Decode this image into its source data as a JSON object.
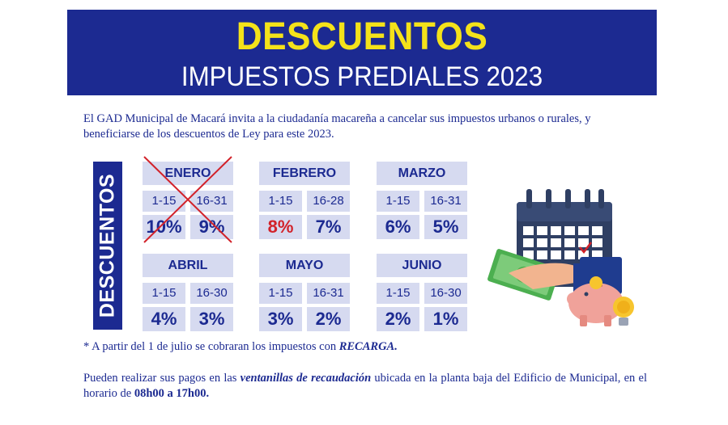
{
  "banner": {
    "title": "DESCUENTOS",
    "subtitle": "IMPUESTOS PREDIALES 2023"
  },
  "intro": "El GAD Municipal de Macará  invita a la ciudadanía macareña a cancelar sus impuestos urbanos o rurales, y beneficiarse de los descuentos de Ley para este 2023.",
  "side_label": "DESCUENTOS",
  "months": [
    {
      "name": "ENERO",
      "r1": "1-15",
      "r2": "16-31",
      "p1": "10%",
      "p2": "9%",
      "crossed": true
    },
    {
      "name": "FEBRERO",
      "r1": "1-15",
      "r2": "16-28",
      "p1": "8%",
      "p2": "7%",
      "highlight_first": true
    },
    {
      "name": "MARZO",
      "r1": "1-15",
      "r2": "16-31",
      "p1": "6%",
      "p2": "5%"
    },
    {
      "name": "ABRIL",
      "r1": "1-15",
      "r2": "16-30",
      "p1": "4%",
      "p2": "3%"
    },
    {
      "name": "MAYO",
      "r1": "1-15",
      "r2": "16-31",
      "p1": "3%",
      "p2": "2%"
    },
    {
      "name": "JUNIO",
      "r1": "1-15",
      "r2": "16-30",
      "p1": "2%",
      "p2": "1%"
    }
  ],
  "note": {
    "prefix": "* A partir del 1 de julio se cobraran los impuestos con ",
    "keyword": "RECARGA."
  },
  "payment": {
    "part1": "Pueden realizar sus pagos en las ",
    "emphasis": "ventanillas de recaudación",
    "part2": " ubicada en la planta baja del Edificio de Municipal, en el horario de ",
    "hours": "08h00 a 17h00."
  },
  "colors": {
    "navy": "#1c2a91",
    "yellow": "#f4e21a",
    "cell_bg": "#d6daf0",
    "red": "#d2222a"
  },
  "illustration": "calendar-money-piggy-bank-icon"
}
